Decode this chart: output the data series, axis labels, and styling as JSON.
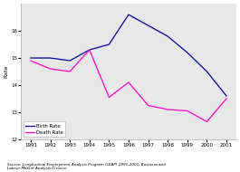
{
  "years": [
    1991,
    1992,
    1993,
    1994,
    1995,
    1996,
    1997,
    1998,
    1999,
    2000,
    2001
  ],
  "birth_rate": [
    15.0,
    15.0,
    14.9,
    15.3,
    15.5,
    16.6,
    16.2,
    15.8,
    15.2,
    14.5,
    13.6
  ],
  "death_rate": [
    14.9,
    14.6,
    14.5,
    15.3,
    13.55,
    14.1,
    13.25,
    13.1,
    13.05,
    12.65,
    13.5
  ],
  "birth_color": "#000099",
  "death_color": "#ff00cc",
  "ylim": [
    12,
    17
  ],
  "yticks": [
    12,
    13,
    14,
    15,
    16
  ],
  "ylabel": "Rate",
  "legend_birth": "Birth Rate",
  "legend_death": "Death Rate",
  "source_text": "Source: Longitudinal Employment Analysis Program (LEAP) 1991-2001, Business and\nLabour Market Analysis Division.",
  "bg_color": "#ffffff",
  "plot_bg_color": "#e8e8e8"
}
